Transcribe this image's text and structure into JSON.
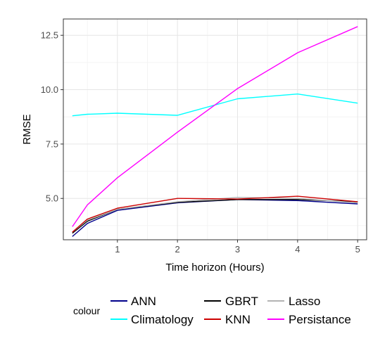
{
  "chart_data": {
    "type": "line",
    "xlabel": "Time horizon (Hours)",
    "ylabel": "RMSE",
    "xlim": [
      0.1,
      5.15
    ],
    "ylim": [
      3.1,
      13.25
    ],
    "x_ticks": [
      1,
      2,
      3,
      4,
      5
    ],
    "x_tick_labels": [
      "1",
      "2",
      "3",
      "4",
      "5"
    ],
    "y_ticks": [
      5.0,
      7.5,
      10.0,
      12.5
    ],
    "y_tick_labels": [
      "5.0",
      "7.5",
      "10.0",
      "12.5"
    ],
    "grid": true,
    "legend_title": "colour",
    "legend_position": "bottom",
    "x": [
      0.25,
      0.5,
      1,
      2,
      3,
      4,
      5
    ],
    "series": [
      {
        "name": "ANN",
        "color": "#00008b",
        "values": [
          3.25,
          3.85,
          4.45,
          4.8,
          4.95,
          4.9,
          4.75
        ]
      },
      {
        "name": "GBRT",
        "color": "#000000",
        "values": [
          3.4,
          3.95,
          4.5,
          4.82,
          4.95,
          4.95,
          4.85
        ]
      },
      {
        "name": "Lasso",
        "color": "#b3b3b3",
        "values": [
          3.45,
          4.0,
          4.5,
          4.85,
          5.05,
          5.0,
          4.8
        ]
      },
      {
        "name": "Climatology",
        "color": "#00ffff",
        "values": [
          8.8,
          8.87,
          8.92,
          8.82,
          9.58,
          9.8,
          9.38
        ]
      },
      {
        "name": "KNN",
        "color": "#cc0000",
        "values": [
          3.45,
          4.05,
          4.55,
          5.0,
          4.97,
          5.1,
          4.85
        ]
      },
      {
        "name": "Persistance",
        "color": "#ff00ff",
        "values": [
          3.7,
          4.7,
          5.95,
          8.05,
          10.05,
          11.7,
          12.9
        ]
      }
    ]
  }
}
